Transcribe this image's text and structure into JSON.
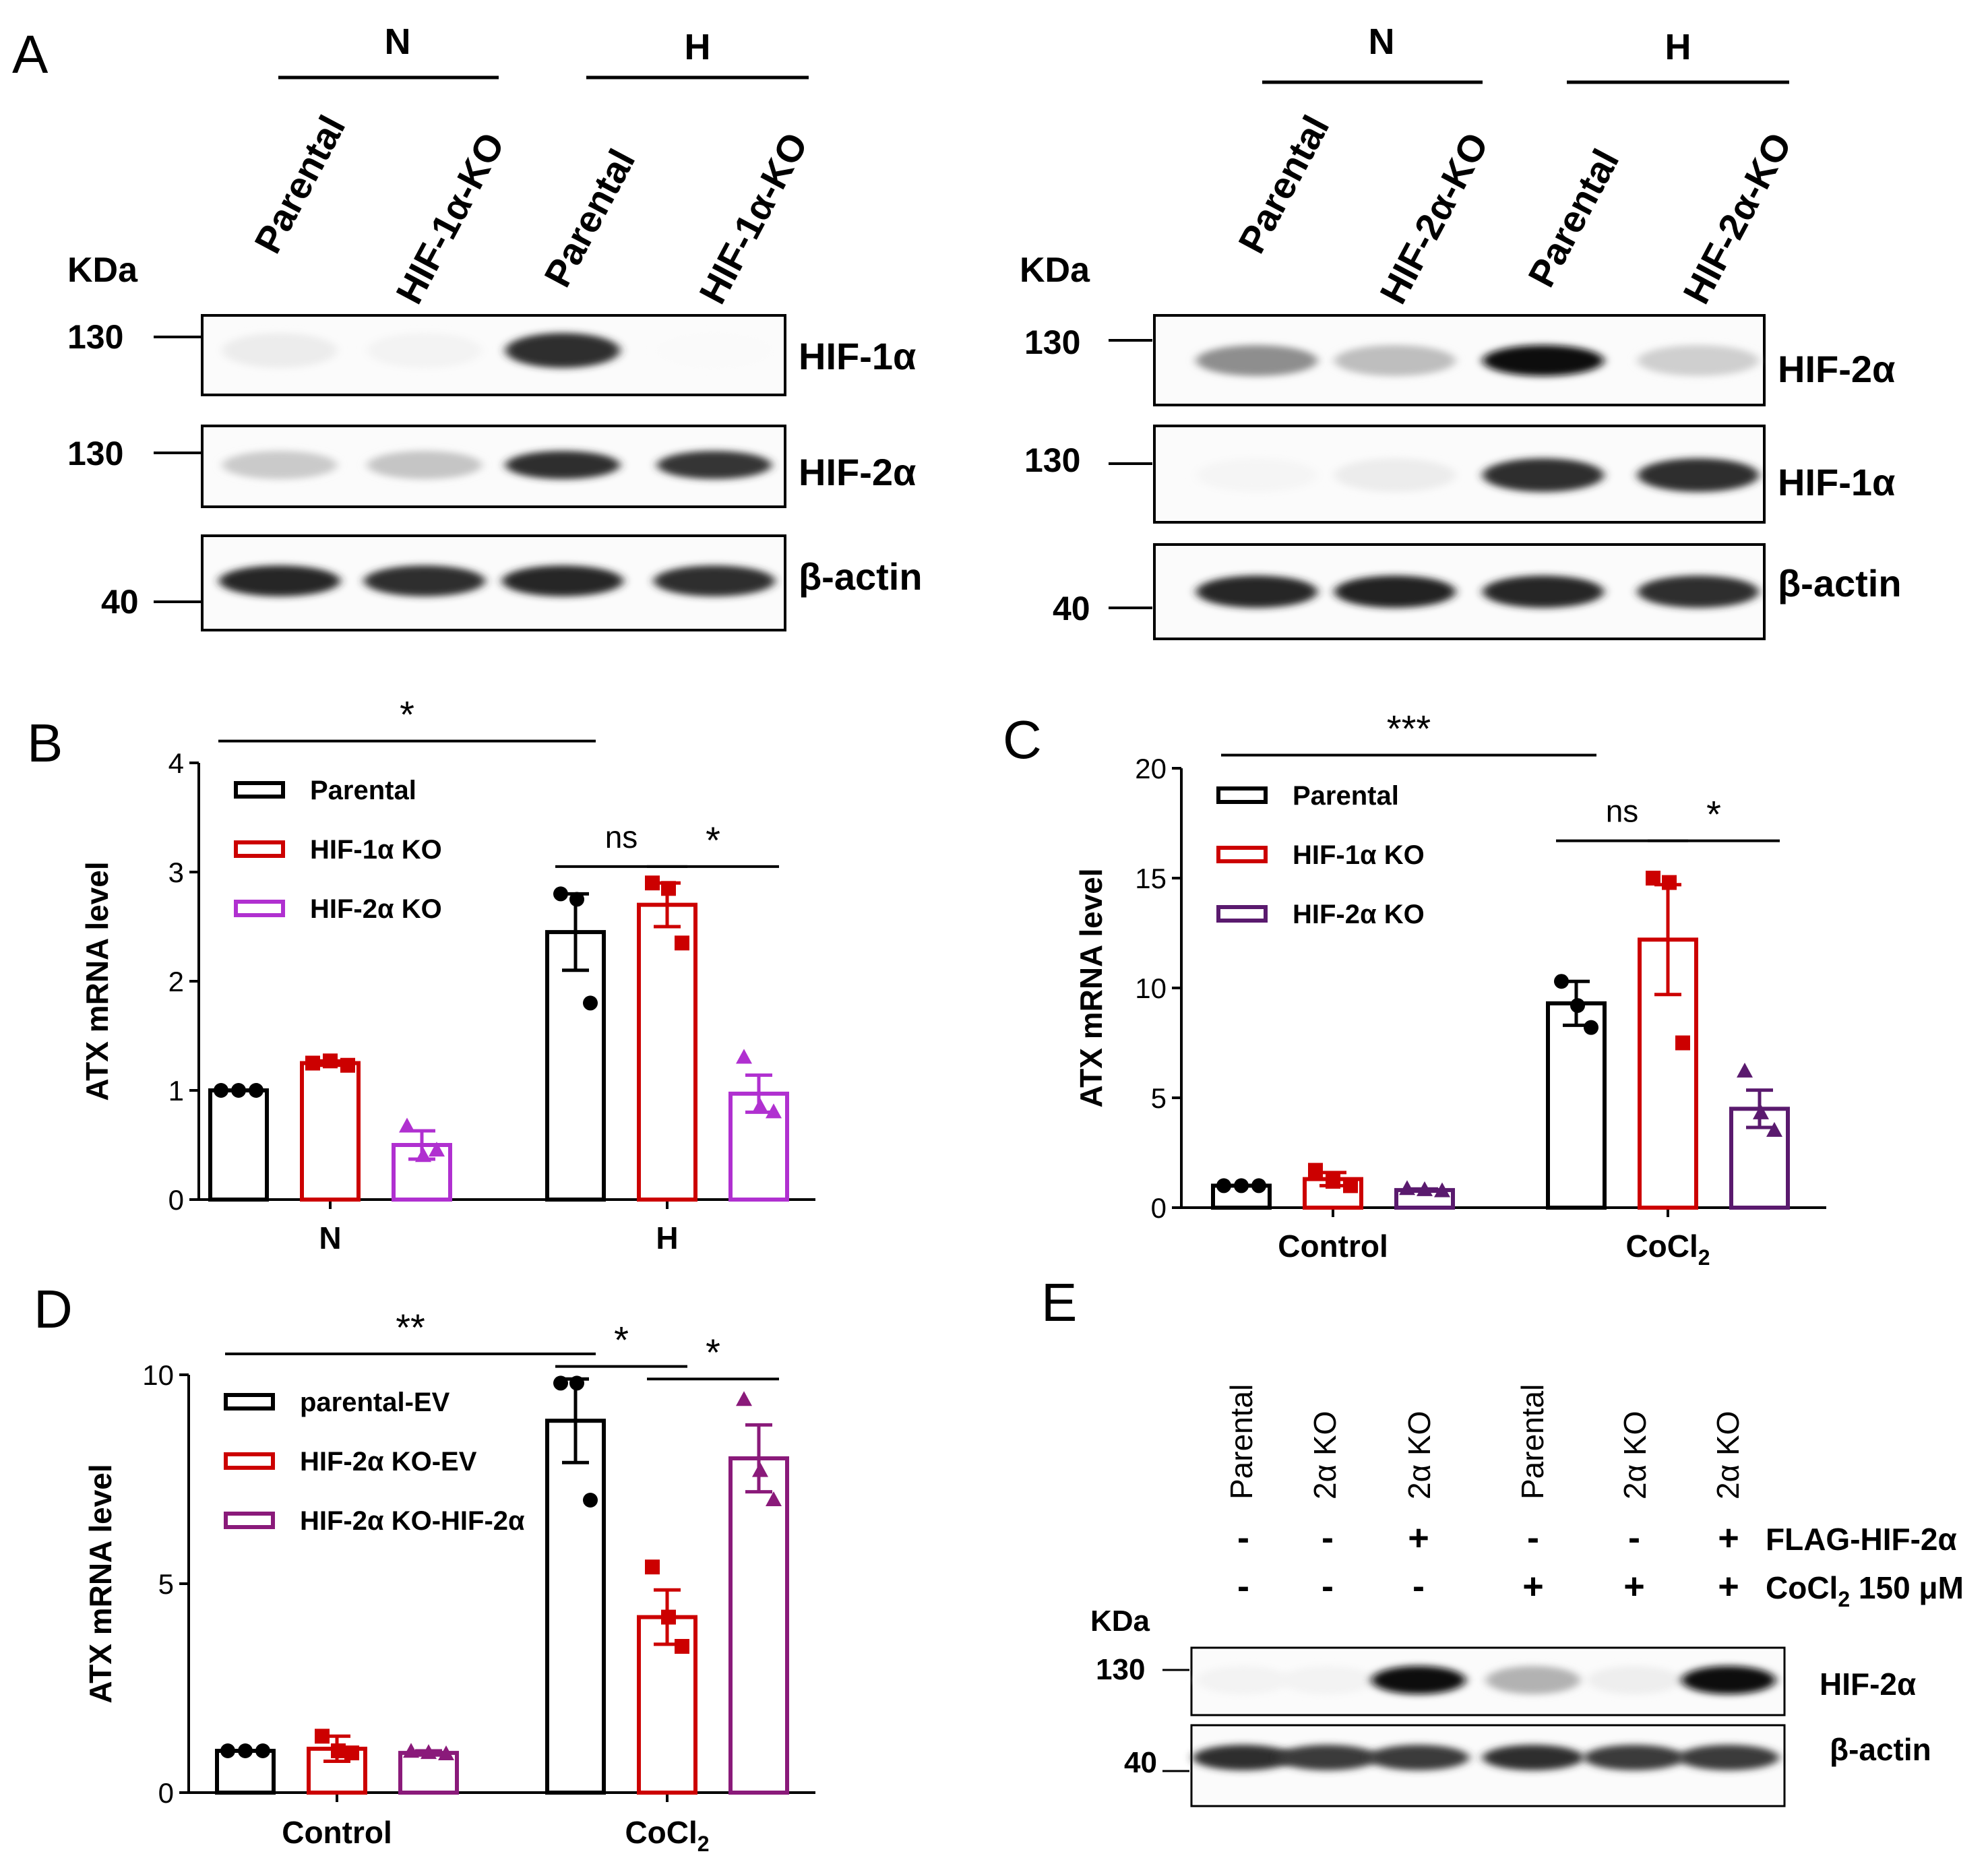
{
  "panels": {
    "A": {
      "letter": "A",
      "blots": [
        {
          "groups": [
            {
              "label": "N"
            },
            {
              "label": "H"
            }
          ],
          "lanes": [
            "Parental",
            "HIF-1α-KO",
            "Parental",
            "HIF-1α-KO"
          ],
          "kda_label": "KDa",
          "rows": [
            {
              "marker": "130",
              "protein": "HIF-1α",
              "intensity": [
                0.06,
                0.03,
                0.85,
                0.0
              ]
            },
            {
              "marker": "130",
              "protein": "HIF-2α",
              "intensity": [
                0.2,
                0.22,
                0.85,
                0.82
              ]
            },
            {
              "marker": "40",
              "protein": "β-actin",
              "intensity": [
                0.88,
                0.85,
                0.88,
                0.85
              ]
            }
          ]
        },
        {
          "groups": [
            {
              "label": "N"
            },
            {
              "label": "H"
            }
          ],
          "lanes": [
            "Parental",
            "HIF-2α-KO",
            "Parental",
            "HIF-2α-KO"
          ],
          "kda_label": "KDa",
          "rows": [
            {
              "marker": "130",
              "protein": "HIF-2α",
              "intensity": [
                0.45,
                0.25,
                0.98,
                0.18
              ]
            },
            {
              "marker": "130",
              "protein": "HIF-1α",
              "intensity": [
                0.02,
                0.06,
                0.85,
                0.85
              ]
            },
            {
              "marker": "40",
              "protein": "β-actin",
              "intensity": [
                0.88,
                0.9,
                0.88,
                0.85
              ]
            }
          ]
        }
      ]
    },
    "B": {
      "letter": "B"
    },
    "C": {
      "letter": "C"
    },
    "D": {
      "letter": "D"
    },
    "E": {
      "letter": "E",
      "lanes": [
        "Parental",
        "2α KO",
        "2α KO",
        "Parental",
        "2α KO",
        "2α KO"
      ],
      "treatments": [
        {
          "label": "FLAG-HIF-2α",
          "signs": [
            "-",
            "-",
            "+",
            "-",
            "-",
            "+"
          ]
        },
        {
          "label_main": "CoCl",
          "label_sub": "2",
          "label_tail": " 150 μM",
          "signs": [
            "-",
            "-",
            "-",
            "+",
            "+",
            "+"
          ]
        }
      ],
      "kda_label": "KDa",
      "rows": [
        {
          "marker": "130",
          "protein": "HIF-2α",
          "intensity": [
            0.03,
            0.03,
            1.0,
            0.3,
            0.05,
            1.0
          ]
        },
        {
          "marker": "40",
          "protein": "β-actin",
          "intensity": [
            0.85,
            0.8,
            0.8,
            0.85,
            0.8,
            0.8
          ]
        }
      ]
    }
  },
  "chart_data": [
    {
      "panel": "B",
      "type": "bar",
      "ylabel": "ATX mRNA level",
      "ylim": [
        0,
        4
      ],
      "yticks": [
        "0",
        "1",
        "2",
        "3",
        "4"
      ],
      "categories": [
        "N",
        "H"
      ],
      "series": [
        {
          "name": "Parental",
          "color": "#000000",
          "marker": "circle",
          "values": [
            1.0,
            2.45
          ],
          "sem": [
            0.0,
            0.35
          ],
          "points": [
            [
              1.0,
              1.0,
              1.0
            ],
            [
              2.8,
              2.75,
              1.8
            ]
          ]
        },
        {
          "name": "HIF-1α KO",
          "color": "#cc0000",
          "marker": "square",
          "values": [
            1.25,
            2.7
          ],
          "sem": [
            0.02,
            0.2
          ],
          "points": [
            [
              1.25,
              1.27,
              1.23
            ],
            [
              2.9,
              2.85,
              2.35
            ]
          ]
        },
        {
          "name": "HIF-2α KO",
          "color": "#b030d0",
          "marker": "triangle",
          "values": [
            0.5,
            0.97
          ],
          "sem": [
            0.13,
            0.17
          ],
          "points": [
            [
              0.67,
              0.4,
              0.45
            ],
            [
              1.3,
              0.85,
              0.8
            ]
          ]
        }
      ],
      "annotations": [
        {
          "text": "*",
          "from": [
            0,
            0
          ],
          "to": [
            1,
            0
          ],
          "y": 4.2
        },
        {
          "text": "ns",
          "from": [
            1,
            0
          ],
          "to": [
            1,
            1
          ],
          "y": 3.05
        },
        {
          "text": "*",
          "from": [
            1,
            1
          ],
          "to": [
            1,
            2
          ],
          "y": 3.05
        }
      ],
      "legend": "top-left"
    },
    {
      "panel": "C",
      "type": "bar",
      "ylabel": "ATX mRNA level",
      "ylim": [
        0,
        20
      ],
      "yticks": [
        "0",
        "5",
        "10",
        "15",
        "20"
      ],
      "categories": [
        "Control",
        {
          "main": "CoCl",
          "sub": "2"
        }
      ],
      "series": [
        {
          "name": "Parental",
          "color": "#000000",
          "marker": "circle",
          "values": [
            1.0,
            9.3
          ],
          "sem": [
            0.0,
            1.0
          ],
          "points": [
            [
              1.0,
              1.0,
              1.0
            ],
            [
              10.3,
              9.2,
              8.2
            ]
          ]
        },
        {
          "name": "HIF-1α KO",
          "color": "#cc0000",
          "marker": "square",
          "values": [
            1.3,
            12.2
          ],
          "sem": [
            0.3,
            2.5
          ],
          "points": [
            [
              1.7,
              1.2,
              1.0
            ],
            [
              15.0,
              14.8,
              7.5
            ]
          ]
        },
        {
          "name": "HIF-2α KO",
          "color": "#5a1a6e",
          "marker": "triangle",
          "values": [
            0.8,
            4.5
          ],
          "sem": [
            0.05,
            0.85
          ],
          "points": [
            [
              0.85,
              0.8,
              0.75
            ],
            [
              6.2,
              4.3,
              3.5
            ]
          ]
        }
      ],
      "annotations": [
        {
          "text": "***",
          "from": [
            0,
            0
          ],
          "to": [
            1,
            0
          ],
          "y": 20.6
        },
        {
          "text": "ns",
          "from": [
            1,
            0
          ],
          "to": [
            1,
            1
          ],
          "y": 16.7
        },
        {
          "text": "*",
          "from": [
            1,
            1
          ],
          "to": [
            1,
            2
          ],
          "y": 16.7
        }
      ],
      "legend": "top-left"
    },
    {
      "panel": "D",
      "type": "bar",
      "ylabel": "ATX mRNA level",
      "ylim": [
        0,
        10
      ],
      "yticks": [
        "0",
        "5",
        "10"
      ],
      "categories": [
        "Control",
        {
          "main": "CoCl",
          "sub": "2"
        }
      ],
      "series": [
        {
          "name": "parental-EV",
          "color": "#000000",
          "marker": "circle",
          "values": [
            1.0,
            8.9
          ],
          "sem": [
            0.0,
            1.0
          ],
          "points": [
            [
              1.0,
              1.0,
              1.0
            ],
            [
              9.8,
              9.8,
              7.0
            ]
          ]
        },
        {
          "name": "HIF-2α KO-EV",
          "color": "#cc0000",
          "marker": "square",
          "values": [
            1.05,
            4.2
          ],
          "sem": [
            0.3,
            0.65
          ],
          "points": [
            [
              1.35,
              1.0,
              0.95
            ],
            [
              5.4,
              4.2,
              3.5
            ]
          ]
        },
        {
          "name": "HIF-2α KO-HIF-2α",
          "color": "#8a1a7a",
          "marker": "triangle",
          "values": [
            0.95,
            8.0
          ],
          "sem": [
            0.05,
            0.8
          ],
          "points": [
            [
              0.98,
              0.95,
              0.92
            ],
            [
              9.4,
              7.7,
              7.0
            ]
          ]
        }
      ],
      "annotations": [
        {
          "text": "**",
          "from": [
            0,
            0
          ],
          "to": [
            1,
            0
          ],
          "y": 10.5
        },
        {
          "text": "*",
          "from": [
            1,
            0
          ],
          "to": [
            1,
            1
          ],
          "y": 10.2
        },
        {
          "text": "*",
          "from": [
            1,
            1
          ],
          "to": [
            1,
            2
          ],
          "y": 9.9
        }
      ],
      "legend": "top-left"
    }
  ]
}
